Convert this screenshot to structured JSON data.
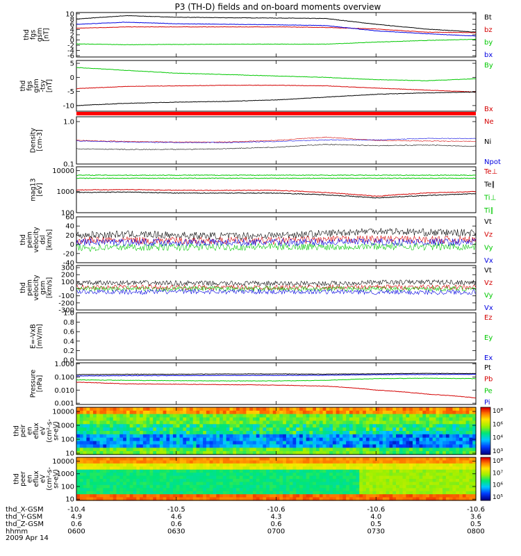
{
  "title": "P3 (TH-D) fields and on-board moments overview",
  "date_label": "2009 Apr 14",
  "x_axis": {
    "ticks": [
      "0600",
      "0630",
      "0700",
      "0730",
      "0800"
    ],
    "rows": [
      {
        "label": "thd_X-GSM",
        "values": [
          "-10.4",
          "-10.5",
          "-10.6",
          "-10.6",
          "-10.6"
        ]
      },
      {
        "label": "thd_Y-GSM",
        "values": [
          "4.9",
          "4.6",
          "4.3",
          "4.0",
          "3.6"
        ]
      },
      {
        "label": "thd_Z-GSM",
        "values": [
          "0.6",
          "0.6",
          "0.6",
          "0.5",
          "0.5"
        ]
      },
      {
        "label": "hhmm",
        "values": [
          "0600",
          "0630",
          "0700",
          "0730",
          "0800"
        ]
      }
    ]
  },
  "colors": {
    "black": "#000000",
    "red": "#d40000",
    "green": "#00c800",
    "blue": "#0000e0",
    "ticks_red": "#ff0000"
  },
  "panels": [
    {
      "ylabel": [
        "thd",
        "fgs",
        "gsm",
        "[nT]"
      ],
      "ticks": [
        "10",
        "8",
        "6",
        "4",
        "2",
        "0",
        "-2",
        "-4",
        "-6"
      ],
      "tick_pos": [
        10,
        8,
        6,
        4,
        2,
        0,
        -2,
        -4,
        -6
      ],
      "ymin": -6.5,
      "ymax": 10.5,
      "legend": [
        {
          "text": "Bt",
          "color": "#000000"
        },
        {
          "text": "bz",
          "color": "#d40000"
        },
        {
          "text": "by",
          "color": "#00c800"
        },
        {
          "text": "bx",
          "color": "#0000e0"
        }
      ]
    },
    {
      "ylabel": [
        "thd",
        "fgs",
        "gsm",
        "-tsy",
        "[nT]"
      ],
      "ticks": [
        "5",
        "0",
        "-5",
        "-10"
      ],
      "tick_pos": [
        5,
        0,
        -5,
        -10
      ],
      "ymin": -12,
      "ymax": 6,
      "legend": [
        {
          "text": "By",
          "color": "#00c800"
        },
        {
          "text": "Bx",
          "color": "#d40000"
        }
      ]
    },
    {
      "ylabel": [
        "Density",
        "[cm-3]"
      ],
      "ticks": [
        "1.0",
        "0.1"
      ],
      "tick_pos": [
        1,
        0.1
      ],
      "ymin": 0.1,
      "ymax": 1.3,
      "log": true,
      "legend": [
        {
          "text": "Ne",
          "color": "#d40000"
        },
        {
          "text": "Ni",
          "color": "#000000"
        },
        {
          "text": "Npot",
          "color": "#0000e0"
        }
      ]
    },
    {
      "ylabel": [
        "mag13",
        "[eV]"
      ],
      "ticks": [
        "10000",
        "1000",
        "100"
      ],
      "tick_pos": [
        10000,
        1000,
        100
      ],
      "ymin": 100,
      "ymax": 15000,
      "log": true,
      "legend": [
        {
          "text": "Te⊥",
          "color": "#d40000"
        },
        {
          "text": "Te∥",
          "color": "#000000"
        },
        {
          "text": "Ti⊥",
          "color": "#00c800"
        },
        {
          "text": "Ti∥",
          "color": "#00c800"
        }
      ]
    },
    {
      "ylabel": [
        "thd",
        "peim",
        "velocity",
        "dsl",
        "[km/s]"
      ],
      "ticks": [
        "60",
        "40",
        "20",
        "0",
        "-20",
        "-40"
      ],
      "tick_pos": [
        60,
        40,
        20,
        0,
        -20,
        -40
      ],
      "ymin": -40,
      "ymax": 60,
      "legend": [
        {
          "text": "Vt",
          "color": "#000000"
        },
        {
          "text": "Vz",
          "color": "#d40000"
        },
        {
          "text": "Vy",
          "color": "#00c800"
        },
        {
          "text": "Vx",
          "color": "#0000e0"
        }
      ]
    },
    {
      "ylabel": [
        "thd",
        "peim",
        "velocity",
        "gsm",
        "[km/s]"
      ],
      "ticks": [
        "300",
        "200",
        "100",
        "0",
        "-100",
        "-200",
        "-300"
      ],
      "tick_pos": [
        300,
        200,
        100,
        0,
        -100,
        -200,
        -300
      ],
      "ymin": -300,
      "ymax": 330,
      "legend": [
        {
          "text": "Vt",
          "color": "#000000"
        },
        {
          "text": "Vz",
          "color": "#d40000"
        },
        {
          "text": "Vy",
          "color": "#00c800"
        },
        {
          "text": "Vx",
          "color": "#0000e0"
        }
      ]
    },
    {
      "ylabel": [
        "E=-VxB",
        "[mV/m]"
      ],
      "ticks": [
        "1.0",
        "0.8",
        "0.6",
        "0.4",
        "0.2",
        "0.0"
      ],
      "tick_pos": [
        1.0,
        0.8,
        0.6,
        0.4,
        0.2,
        0.0
      ],
      "ymin": 0,
      "ymax": 1.0,
      "legend": [
        {
          "text": "Ez",
          "color": "#d40000"
        },
        {
          "text": "Ey",
          "color": "#00c800"
        },
        {
          "text": "Ex",
          "color": "#0000e0"
        }
      ]
    },
    {
      "ylabel": [
        "Pressure",
        "[nPa]"
      ],
      "ticks": [
        "1.000",
        "0.100",
        "0.010",
        "0.001"
      ],
      "tick_pos": [
        1.0,
        0.1,
        0.01,
        0.001
      ],
      "ymin": 0.0008,
      "ymax": 1.2,
      "log": true,
      "legend": [
        {
          "text": "Pt",
          "color": "#000000"
        },
        {
          "text": "Pb",
          "color": "#d40000"
        },
        {
          "text": "Pe",
          "color": "#00c800"
        },
        {
          "text": "Pi",
          "color": "#0000e0"
        }
      ]
    },
    {
      "ylabel": [
        "thd",
        "peir",
        "en",
        "eflux",
        "eV",
        "(cm²-s-",
        "sr-eV)"
      ],
      "ticks": [
        "10000",
        "1000",
        "100",
        "10"
      ],
      "tick_pos": [
        10000,
        1000,
        100,
        10
      ],
      "ymin": 8,
      "ymax": 20000,
      "log": true,
      "colorbar": [
        "10⁸",
        "10⁶",
        "10⁴",
        "10³"
      ],
      "legend": []
    },
    {
      "ylabel": [
        "thd",
        "peer",
        "en",
        "eflux",
        "eV",
        "(cm²-s-",
        "sr-eV)"
      ],
      "ticks": [
        "10000",
        "1000",
        "100",
        "10"
      ],
      "tick_pos": [
        10000,
        1000,
        100,
        10
      ],
      "ymin": 8,
      "ymax": 20000,
      "log": true,
      "colorbar": [
        "10⁸",
        "10⁷",
        "10⁶",
        "10⁵"
      ],
      "legend": []
    }
  ],
  "chart_data": [
    {
      "type": "line",
      "panel": 0,
      "x": [
        0,
        15,
        30,
        45,
        60,
        75,
        90,
        105,
        120
      ],
      "series": [
        {
          "name": "Bt",
          "values": [
            8.0,
            9.3,
            8.7,
            8.5,
            8.4,
            8.2,
            6.0,
            4.2,
            3.0
          ]
        },
        {
          "name": "bz",
          "values": [
            4.5,
            5.0,
            5.0,
            5.0,
            5.0,
            4.8,
            4.2,
            3.0,
            2.8
          ]
        },
        {
          "name": "by",
          "values": [
            -1.5,
            -1.8,
            -1.7,
            -1.6,
            -1.6,
            -1.6,
            -0.8,
            -0.2,
            0.3
          ]
        },
        {
          "name": "bx",
          "values": [
            6.0,
            6.8,
            6.2,
            6.0,
            5.8,
            5.5,
            3.5,
            2.4,
            1.5
          ]
        }
      ]
    },
    {
      "type": "line",
      "panel": 1,
      "x": [
        0,
        15,
        30,
        45,
        60,
        75,
        90,
        105,
        120
      ],
      "series": [
        {
          "name": "By",
          "values": [
            3.5,
            2.5,
            1.5,
            1.0,
            0.5,
            0.0,
            -0.8,
            -1.2,
            -0.5
          ]
        },
        {
          "name": "Bx",
          "values": [
            -4.0,
            -3.2,
            -3.0,
            -2.8,
            -2.8,
            -3.0,
            -3.8,
            -4.5,
            -5.2
          ]
        },
        {
          "name": "",
          "values": [
            -10.0,
            -9.2,
            -8.8,
            -8.5,
            -8.0,
            -7.0,
            -6.0,
            -5.5,
            -5.2
          ]
        }
      ]
    },
    {
      "type": "line",
      "panel": 2,
      "x": [
        0,
        15,
        30,
        45,
        60,
        75,
        90,
        105,
        120
      ],
      "series": [
        {
          "name": "Ne",
          "values": [
            0.36,
            0.34,
            0.33,
            0.33,
            0.36,
            0.43,
            0.36,
            0.35,
            0.34
          ]
        },
        {
          "name": "Ni",
          "values": [
            0.23,
            0.22,
            0.22,
            0.23,
            0.25,
            0.29,
            0.27,
            0.28,
            0.26
          ]
        },
        {
          "name": "Npot",
          "values": [
            0.35,
            0.33,
            0.32,
            0.32,
            0.34,
            0.37,
            0.37,
            0.4,
            0.4
          ]
        }
      ]
    },
    {
      "type": "line",
      "panel": 3,
      "x": [
        0,
        15,
        30,
        45,
        60,
        75,
        90,
        105,
        120
      ],
      "series": [
        {
          "name": "Te⊥",
          "values": [
            1200,
            1250,
            1150,
            1150,
            1150,
            900,
            600,
            850,
            1000
          ]
        },
        {
          "name": "Te∥",
          "values": [
            900,
            950,
            850,
            850,
            850,
            700,
            500,
            650,
            800
          ]
        },
        {
          "name": "Ti⊥",
          "values": [
            4300,
            4300,
            4300,
            4300,
            4300,
            4300,
            4300,
            4300,
            4300
          ]
        },
        {
          "name": "Ti∥",
          "values": [
            6000,
            6000,
            6000,
            6000,
            6000,
            6000,
            6000,
            6000,
            6000
          ]
        }
      ]
    },
    {
      "type": "line",
      "panel": 4,
      "x": [
        0,
        15,
        30,
        45,
        60,
        75,
        90,
        105,
        120
      ],
      "series": [
        {
          "name": "Vt",
          "values": [
            20,
            22,
            20,
            18,
            20,
            24,
            30,
            26,
            25
          ]
        },
        {
          "name": "Vz",
          "values": [
            8,
            9,
            8,
            8,
            8,
            10,
            12,
            10,
            10
          ]
        },
        {
          "name": "Vy",
          "values": [
            -8,
            -6,
            -6,
            -6,
            -5,
            -5,
            -4,
            -5,
            -5
          ]
        },
        {
          "name": "Vx",
          "values": [
            5,
            5,
            4,
            4,
            4,
            5,
            5,
            5,
            5
          ]
        }
      ]
    },
    {
      "type": "line",
      "panel": 5,
      "x": [
        0,
        15,
        30,
        45,
        60,
        75,
        90,
        105,
        120
      ],
      "series": [
        {
          "name": "Vt",
          "values": [
            80,
            85,
            80,
            75,
            75,
            75,
            90,
            95,
            90
          ]
        },
        {
          "name": "Vz",
          "values": [
            20,
            22,
            20,
            18,
            18,
            20,
            25,
            25,
            20
          ]
        },
        {
          "name": "Vy",
          "values": [
            0,
            0,
            0,
            0,
            0,
            0,
            0,
            0,
            0
          ]
        },
        {
          "name": "Vx",
          "values": [
            -40,
            -45,
            -40,
            -40,
            -40,
            -40,
            -50,
            -50,
            -45
          ]
        }
      ]
    },
    {
      "type": "line",
      "panel": 7,
      "x": [
        0,
        15,
        30,
        45,
        60,
        75,
        90,
        105,
        120
      ],
      "series": [
        {
          "name": "Pt",
          "values": [
            0.15,
            0.16,
            0.16,
            0.17,
            0.17,
            0.165,
            0.175,
            0.19,
            0.18
          ]
        },
        {
          "name": "Pb",
          "values": [
            0.04,
            0.03,
            0.028,
            0.026,
            0.024,
            0.02,
            0.01,
            0.005,
            0.0025
          ]
        },
        {
          "name": "Pe",
          "values": [
            0.06,
            0.055,
            0.052,
            0.05,
            0.05,
            0.055,
            0.075,
            0.08,
            0.075
          ]
        },
        {
          "name": "Pi",
          "values": [
            0.12,
            0.125,
            0.128,
            0.13,
            0.132,
            0.135,
            0.15,
            0.155,
            0.16
          ]
        }
      ]
    },
    {
      "type": "heatmap",
      "panel": 8,
      "x_range": [
        0,
        120
      ],
      "y_range": [
        10,
        10000
      ]
    },
    {
      "type": "heatmap",
      "panel": 9,
      "x_range": [
        0,
        120
      ],
      "y_range": [
        10,
        10000
      ]
    }
  ]
}
